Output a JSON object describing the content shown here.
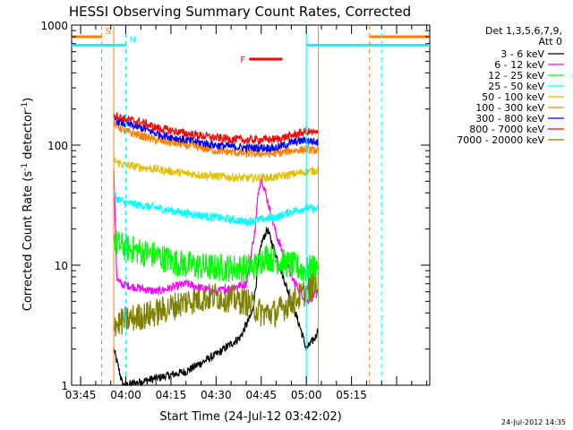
{
  "chart_data": {
    "type": "line",
    "title": "HESSI Observing Summary Count Rates, Corrected",
    "xlabel": "Start Time (24-Jul-12 03:42:02)",
    "ylabel_main": "Corrected Count Rate (s",
    "ylabel_sup1": "-1",
    "ylabel_mid": " detector",
    "ylabel_sup2": "-1",
    "ylabel_end": ")",
    "yscale": "log",
    "ylim": [
      1,
      1000
    ],
    "xlim_minutes": [
      222,
      341
    ],
    "xticks": [
      {
        "min": 225,
        "label": "03:45"
      },
      {
        "min": 240,
        "label": "04:00"
      },
      {
        "min": 255,
        "label": "04:15"
      },
      {
        "min": 270,
        "label": "04:30"
      },
      {
        "min": 285,
        "label": "04:45"
      },
      {
        "min": 300,
        "label": "05:00"
      },
      {
        "min": 315,
        "label": "05:15"
      }
    ],
    "yticks": [
      {
        "value": 1,
        "label": "1"
      },
      {
        "value": 10,
        "label": "10"
      },
      {
        "value": 100,
        "label": "100"
      },
      {
        "value": 1000,
        "label": "1000"
      }
    ],
    "legend_title_1": "Det 1,3,5,6,7,9,",
    "legend_title_2": "Att 0",
    "legend_placement": "right",
    "footer_date": "24-Jul-2012 14:35",
    "series": [
      {
        "name": "3 - 6 keV",
        "color": "#000000",
        "x": [
          236,
          239,
          240,
          260,
          270,
          278,
          282,
          285,
          287,
          290,
          295,
          298,
          300,
          303,
          304
        ],
        "y": [
          2,
          1,
          1,
          1.3,
          1.8,
          2.5,
          4,
          15,
          20,
          12,
          5,
          3,
          2,
          2.5,
          3
        ]
      },
      {
        "name": "6 - 12 keV",
        "color": "#ff00ff",
        "x": [
          236,
          237,
          238,
          250,
          260,
          270,
          280,
          283,
          284,
          285,
          287,
          290,
          295,
          298,
          300,
          304
        ],
        "y": [
          60,
          8,
          7,
          6,
          7,
          6,
          7,
          20,
          40,
          55,
          35,
          18,
          8,
          6,
          5,
          6
        ]
      },
      {
        "name": "12 - 25 keV",
        "color": "#00ff00",
        "x": [
          236,
          237,
          240,
          250,
          260,
          270,
          280,
          284,
          286,
          290,
          295,
          300,
          304
        ],
        "y": [
          18,
          15,
          14,
          12,
          10,
          9.5,
          9.5,
          10,
          12,
          11,
          10,
          9,
          10
        ]
      },
      {
        "name": "25 - 50 keV",
        "color": "#00ffff",
        "x": [
          236,
          237,
          240,
          250,
          260,
          270,
          280,
          285,
          290,
          295,
          300,
          304
        ],
        "y": [
          40,
          36,
          33,
          30,
          27,
          25,
          23,
          24,
          25,
          28,
          30,
          29
        ]
      },
      {
        "name": "50 - 100 keV",
        "color": "#e0c000",
        "x": [
          236,
          237,
          240,
          250,
          260,
          270,
          280,
          290,
          295,
          300,
          304
        ],
        "y": [
          75,
          72,
          68,
          63,
          58,
          55,
          53,
          54,
          57,
          60,
          62
        ]
      },
      {
        "name": "100 - 300 keV",
        "color": "#ff8000",
        "x": [
          236,
          237,
          240,
          245,
          250,
          260,
          270,
          280,
          290,
          295,
          300,
          304
        ],
        "y": [
          150,
          145,
          130,
          120,
          110,
          100,
          90,
          85,
          85,
          90,
          92,
          90
        ]
      },
      {
        "name": "300 - 800 keV",
        "color": "#0000ff",
        "x": [
          236,
          237,
          240,
          245,
          250,
          260,
          270,
          280,
          290,
          295,
          300,
          304
        ],
        "y": [
          170,
          160,
          150,
          140,
          125,
          110,
          100,
          95,
          95,
          105,
          110,
          105
        ]
      },
      {
        "name": "800 - 7000 keV",
        "color": "#ff0000",
        "x": [
          236,
          237,
          240,
          245,
          250,
          260,
          270,
          280,
          290,
          295,
          300,
          304
        ],
        "y": [
          180,
          175,
          165,
          155,
          140,
          125,
          115,
          110,
          112,
          120,
          130,
          125
        ]
      },
      {
        "name": "7000 - 20000 keV",
        "color": "#808000",
        "x": [
          236,
          237,
          240,
          250,
          260,
          270,
          280,
          285,
          290,
          295,
          300,
          304
        ],
        "y": [
          3.5,
          3.2,
          3.5,
          4,
          5,
          5.5,
          5,
          4,
          4,
          5,
          6,
          7
        ]
      }
    ],
    "annotations": [
      {
        "label": "S",
        "color": "#ff8000",
        "x_start": 222,
        "x_end": 232,
        "y": 800,
        "vline": 232
      },
      {
        "label": "N",
        "color": "#00ffff",
        "x_start": 222,
        "x_end": 240,
        "y": 680,
        "vline": 240
      },
      {
        "label": "F",
        "color": "#ff0000",
        "x_start": 281,
        "x_end": 292,
        "y": 520
      },
      {
        "label": "",
        "color": "#00ffff",
        "x_start": 300,
        "x_end": 341,
        "y": 680,
        "vline": 300
      },
      {
        "label": "",
        "color": "#ff8000",
        "x_start": 321,
        "x_end": 341,
        "y": 800,
        "vline": 321
      },
      {
        "label": "",
        "color": "#00ffff",
        "vline": 325
      }
    ],
    "solid_vlines": [
      {
        "x": 236,
        "color": "#ff8000"
      },
      {
        "x": 300,
        "color": "#00ffff"
      },
      {
        "x": 304,
        "color": "#ff8000"
      }
    ]
  }
}
